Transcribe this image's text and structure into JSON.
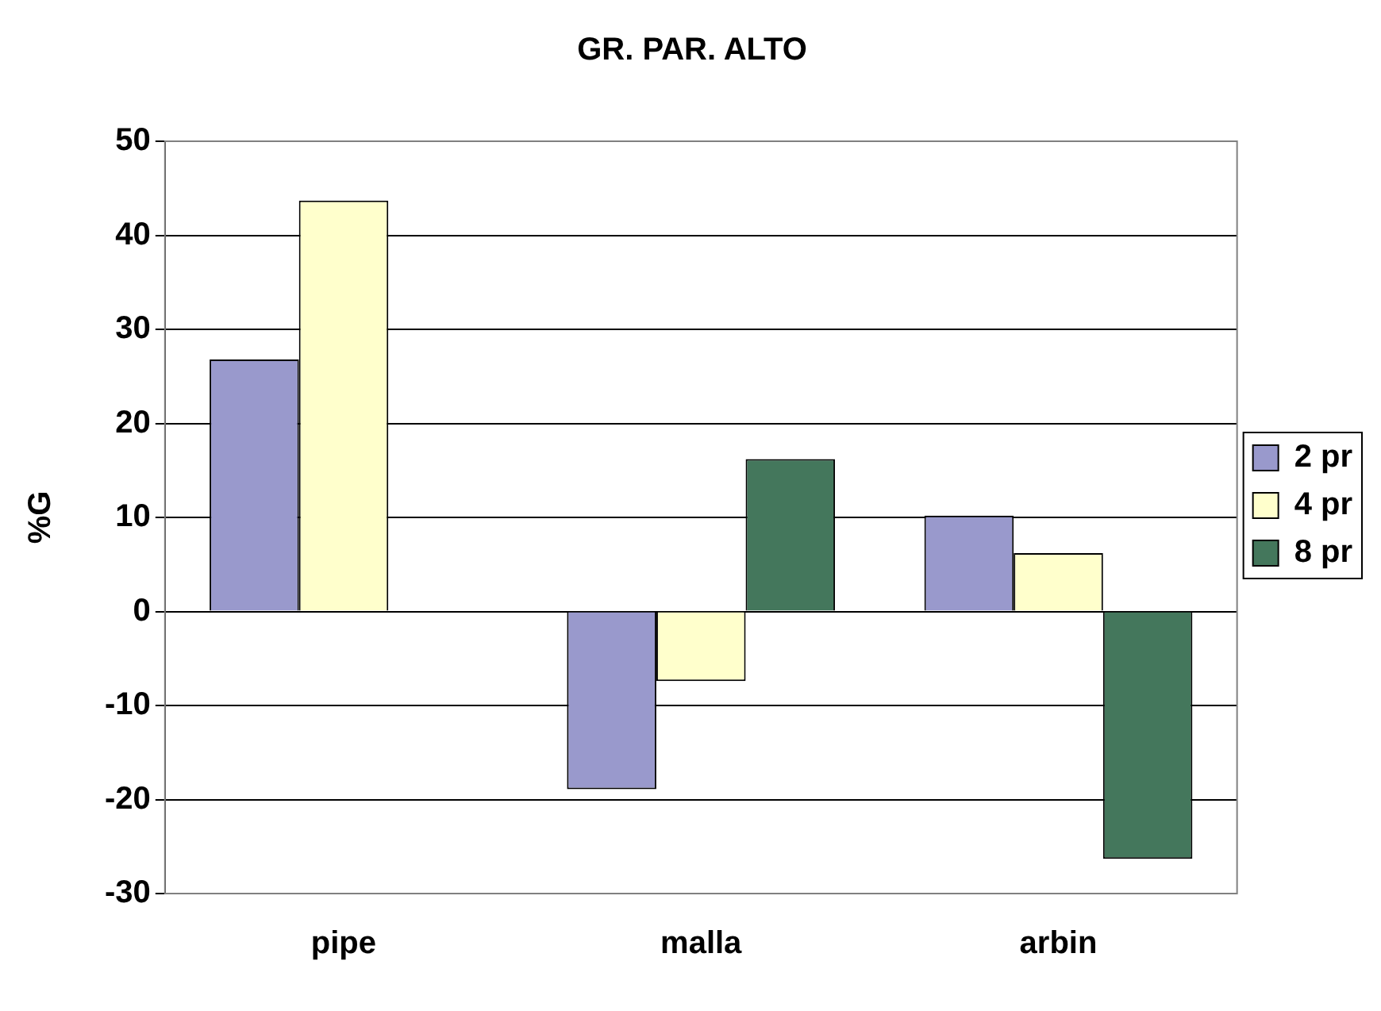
{
  "chart_data": {
    "type": "bar",
    "title": "GR. PAR. ALTO",
    "ylabel": "%G",
    "categories": [
      "pipe",
      "malla",
      "arbin"
    ],
    "series": [
      {
        "name": "2 pr",
        "color": "#9999cc",
        "values": [
          26.8,
          -18.9,
          10.2
        ]
      },
      {
        "name": "4 pr",
        "color": "#ffffcc",
        "values": [
          43.7,
          -7.4,
          6.2
        ]
      },
      {
        "name": "8 pr",
        "color": "#44775c",
        "values": [
          null,
          16.2,
          -26.3
        ]
      }
    ],
    "ylim": [
      -30,
      50
    ],
    "yticks": [
      -30,
      -20,
      -10,
      0,
      10,
      20,
      30,
      40,
      50
    ],
    "grid": "y",
    "legend": "right"
  }
}
